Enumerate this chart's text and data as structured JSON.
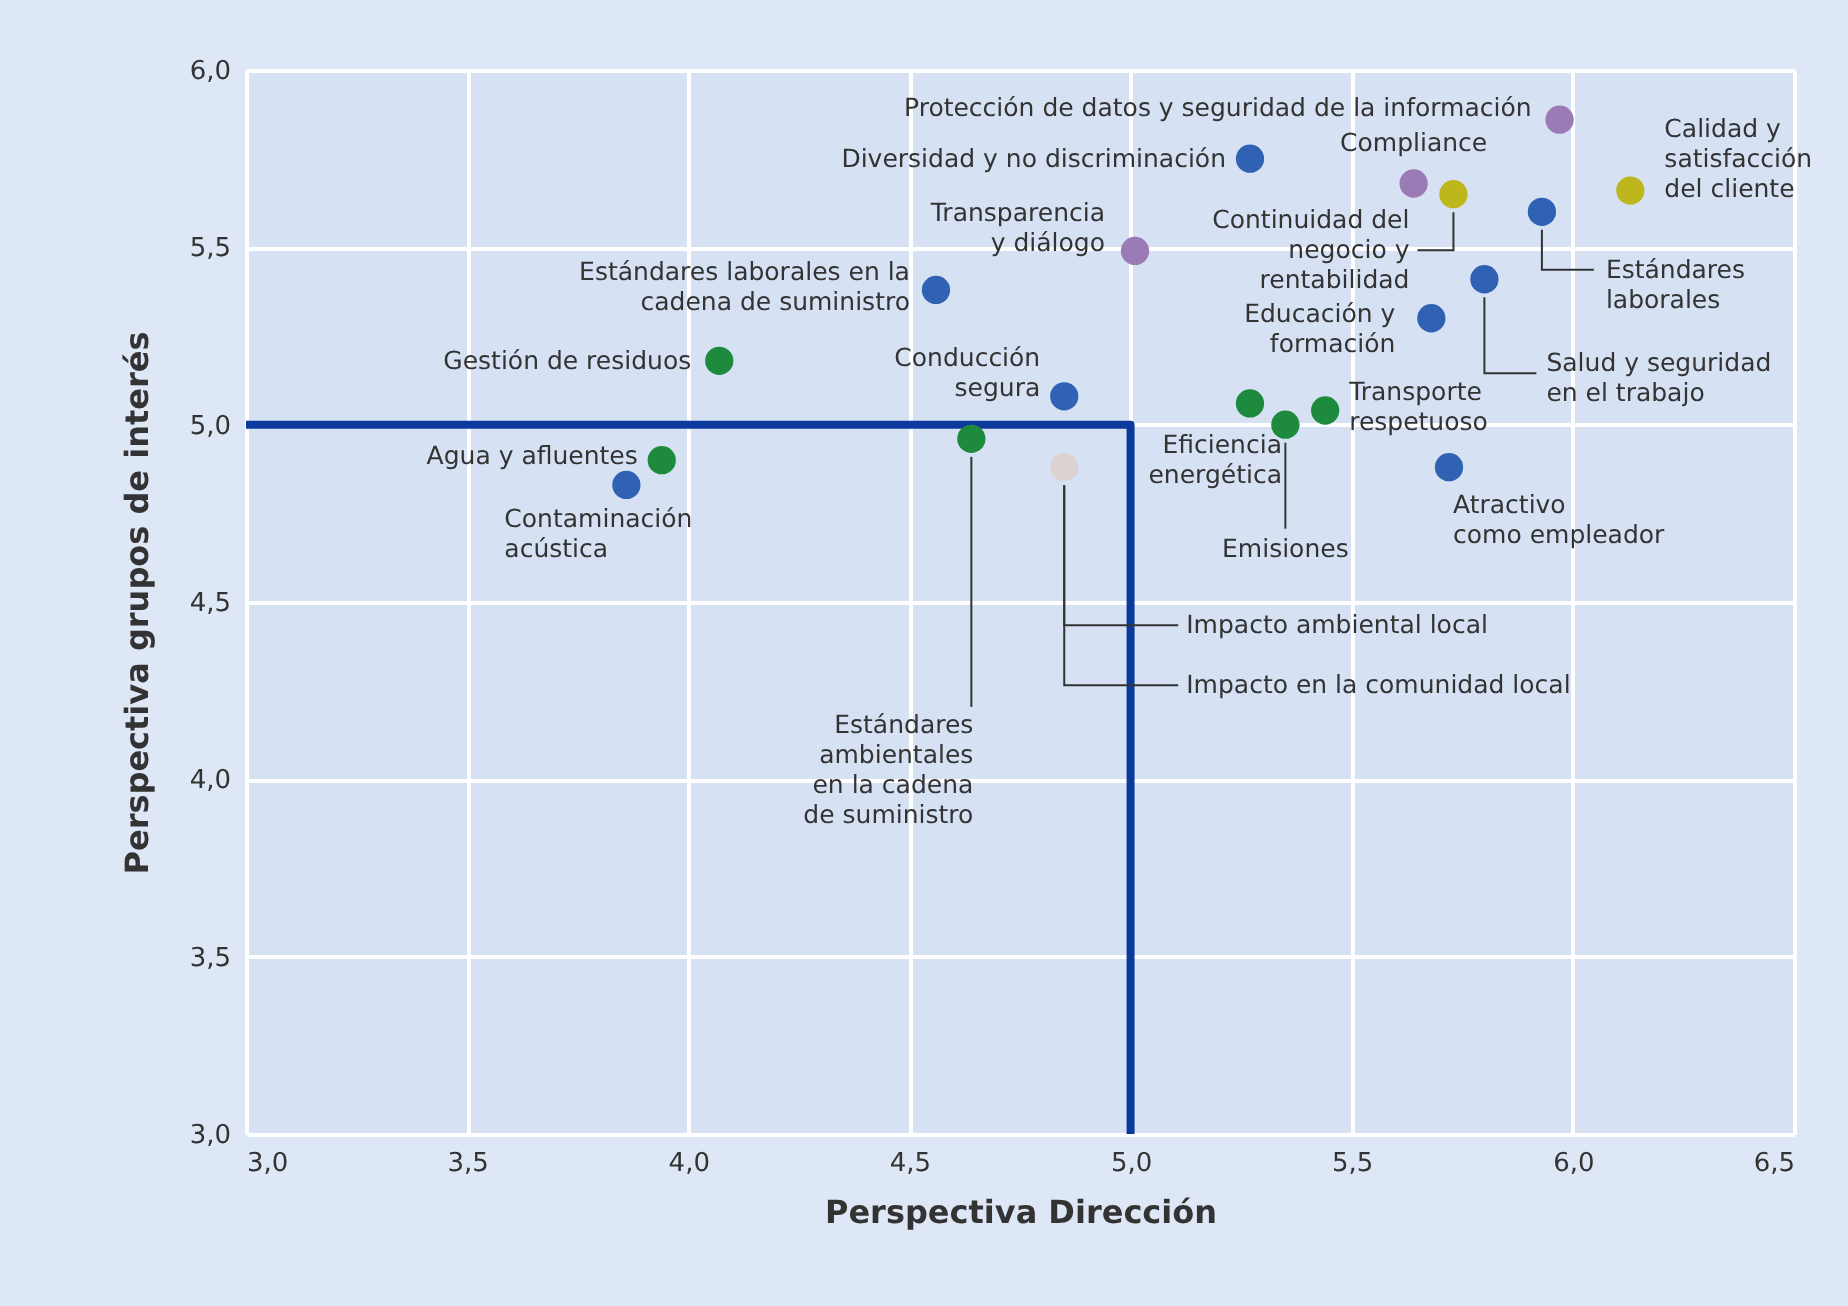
{
  "chart_data": {
    "type": "scatter",
    "xlabel": "Perspectiva Dirección",
    "ylabel": "Perspectiva grupos de interés",
    "xlim": [
      3,
      6.5
    ],
    "ylim": [
      3,
      6
    ],
    "xticks": [
      {
        "value": 3,
        "label": "3,0"
      },
      {
        "value": 3.5,
        "label": "3,5"
      },
      {
        "value": 4,
        "label": "4,0"
      },
      {
        "value": 4.5,
        "label": "4,5"
      },
      {
        "value": 5,
        "label": "5,0"
      },
      {
        "value": 5.5,
        "label": "5,5"
      },
      {
        "value": 6,
        "label": "6,0"
      },
      {
        "value": 6.5,
        "label": "6,5"
      }
    ],
    "yticks": [
      {
        "value": 3,
        "label": "3,0"
      },
      {
        "value": 3.5,
        "label": "3,5"
      },
      {
        "value": 4,
        "label": "4,0"
      },
      {
        "value": 4.5,
        "label": "4,5"
      },
      {
        "value": 5,
        "label": "5,0"
      },
      {
        "value": 5.5,
        "label": "5,5"
      },
      {
        "value": 6,
        "label": "6,0"
      }
    ],
    "grid": true,
    "legend": false,
    "marker": "circle",
    "series": [
      {
        "type": "line",
        "marker": "none",
        "color": "#0b3a9c",
        "x": [
          3,
          5,
          5
        ],
        "values": [
          5,
          5,
          3
        ]
      },
      {
        "color": "#2f62b3",
        "x": [
          5.27,
          5.93,
          5.8,
          4.56,
          5.68,
          4.85,
          5.72,
          3.86
        ],
        "values": [
          5.75,
          5.6,
          5.41,
          5.38,
          5.3,
          5.08,
          4.88,
          4.83
        ]
      },
      {
        "color": "#1e8a3e",
        "x": [
          4.07,
          5.27,
          5.44,
          5.35,
          4.64,
          3.94
        ],
        "values": [
          5.18,
          5.06,
          5.04,
          5.0,
          4.96,
          4.9
        ]
      },
      {
        "color": "#9a7bb6",
        "x": [
          5.97,
          5.64,
          5.01
        ],
        "values": [
          5.86,
          5.68,
          5.49
        ]
      },
      {
        "color": "#bdb61c",
        "x": [
          5.73,
          6.13
        ],
        "values": [
          5.65,
          5.66
        ]
      },
      {
        "color": "#dbd2d2",
        "x": [
          4.85
        ],
        "values": [
          4.88
        ]
      }
    ],
    "annotations": [
      {
        "text": "Protección de datos y seguridad de la información",
        "x": 5.97,
        "y": 5.86
      },
      {
        "text": "Diversidad y no discriminación",
        "x": 5.27,
        "y": 5.75
      },
      {
        "text": "Compliance",
        "x": 5.64,
        "y": 5.68
      },
      {
        "text": "Continuidad del\nnegocio y\nrentabilidad",
        "x": 5.73,
        "y": 5.65
      },
      {
        "text": "Calidad y\nsatisfacción\ndel cliente",
        "x": 6.13,
        "y": 5.66
      },
      {
        "text": "Estándares\nlaborales",
        "x": 5.93,
        "y": 5.6
      },
      {
        "text": "Transparencia\ny diálogo",
        "x": 5.01,
        "y": 5.49
      },
      {
        "text": "Salud y seguridad\nen el trabajo",
        "x": 5.8,
        "y": 5.41
      },
      {
        "text": "Estándares laborales en la\ncadena de suministro",
        "x": 4.56,
        "y": 5.38
      },
      {
        "text": "Educación y\nformación",
        "x": 5.68,
        "y": 5.3
      },
      {
        "text": "Gestión de residuos",
        "x": 4.07,
        "y": 5.18
      },
      {
        "text": "Conducción\nsegura",
        "x": 4.85,
        "y": 5.08
      },
      {
        "text": "Eficiencia\nenergética",
        "x": 5.27,
        "y": 5.06
      },
      {
        "text": "Transporte\nrespetuoso",
        "x": 5.44,
        "y": 5.04
      },
      {
        "text": "Emisiones",
        "x": 5.35,
        "y": 5.0
      },
      {
        "text": "Estándares\nambientales\nen la cadena\nde suministro",
        "x": 4.64,
        "y": 4.96
      },
      {
        "text": "Agua y afluentes",
        "x": 3.94,
        "y": 4.9
      },
      {
        "text": "Atractivo\ncomo empleador",
        "x": 5.72,
        "y": 4.88
      },
      {
        "text": "Impacto ambiental local",
        "x": 4.85,
        "y": 4.88
      },
      {
        "text": "Impacto en la comunidad local",
        "x": 4.85,
        "y": 4.88
      },
      {
        "text": "Contaminación\nacústica",
        "x": 3.86,
        "y": 4.83
      }
    ]
  }
}
